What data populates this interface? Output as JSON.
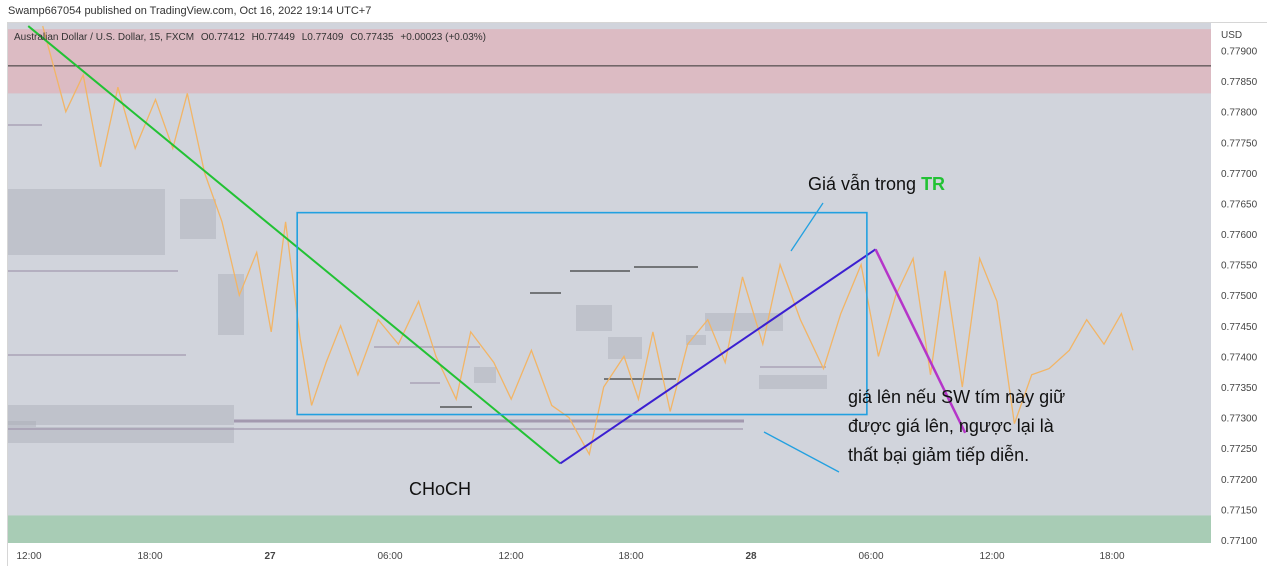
{
  "publisher_line": "Swamp667054 published on TradingView.com, Oct 16, 2022 19:14 UTC+7",
  "symbol_info": "Australian Dollar / U.S. Dollar, 15, FXCM",
  "ohlc": {
    "open": "O0.77412",
    "high": "H0.77449",
    "low": "L0.77409",
    "close": "C0.77435",
    "change": "+0.00023 (+0.03%)"
  },
  "currency": "USD",
  "colors": {
    "background": "#d1d4dc",
    "supply_zone": "#e8a2a9",
    "demand_zone": "#8cc79b",
    "price_line": "#f2b566",
    "downtrend_line": "#22c234",
    "choch_line": "#3b1fd1",
    "drop_line": "#b535c9",
    "range_box": "#22a0e0",
    "tr_label": "#22c234"
  },
  "annotations": {
    "range_title_prefix": "Giá vẫn trong ",
    "range_title_tr": "TR",
    "choch_label": "CHoCH",
    "note_line1": "giá lên nếu SW tím này giữ",
    "note_line2": "được giá lên, ngược lại là",
    "note_line3": "thất bại giảm tiếp diễn."
  },
  "chart_data": {
    "type": "line",
    "x_tick_labels": [
      "12:00",
      "18:00",
      "27",
      "06:00",
      "12:00",
      "18:00",
      "28",
      "06:00",
      "12:00",
      "18:00"
    ],
    "y_tick_labels": [
      "0.77900",
      "0.77850",
      "0.77800",
      "0.77750",
      "0.77700",
      "0.77650",
      "0.77600",
      "0.77550",
      "0.77500",
      "0.77450",
      "0.77400",
      "0.77350",
      "0.77300",
      "0.77250",
      "0.77200",
      "0.77150",
      "0.77100"
    ],
    "ylim": [
      0.77095,
      0.77945
    ],
    "xlim": [
      -1.2,
      40.4
    ],
    "x_unit": "hours after Oct 26 12:00",
    "series": [
      {
        "x": [
          0,
          0.8,
          1.4,
          2.0,
          2.6,
          3.2,
          3.9,
          4.5,
          5.0,
          5.6,
          6.2,
          6.8,
          7.4,
          7.9,
          8.4,
          8.9,
          9.3,
          9.8,
          10.3,
          10.9,
          11.6,
          12.3,
          13.0,
          13.6,
          14.3,
          14.8,
          15.6,
          16.2,
          16.9,
          17.6,
          18.2,
          18.9,
          19.4,
          20.1,
          20.6,
          21.1,
          21.7,
          22.3,
          23.0,
          23.6,
          24.2,
          24.9,
          25.5,
          26.2,
          27.0,
          27.6,
          28.3,
          28.9,
          29.5,
          30.1,
          30.7,
          31.2,
          31.8,
          32.4,
          33.0,
          33.6,
          34.2,
          34.8,
          35.5,
          36.1,
          36.7,
          37.3,
          37.7
        ],
        "y": [
          0.7794,
          0.778,
          0.7786,
          0.7771,
          0.7784,
          0.7774,
          0.7782,
          0.7774,
          0.7783,
          0.777,
          0.7762,
          0.775,
          0.7757,
          0.7744,
          0.7762,
          0.7743,
          0.7732,
          0.7739,
          0.7745,
          0.7737,
          0.7746,
          0.7742,
          0.7749,
          0.774,
          0.7733,
          0.7744,
          0.7739,
          0.7733,
          0.7741,
          0.7732,
          0.773,
          0.7724,
          0.7735,
          0.774,
          0.7733,
          0.7744,
          0.7731,
          0.7742,
          0.7746,
          0.7739,
          0.7753,
          0.7742,
          0.7755,
          0.7746,
          0.7738,
          0.7747,
          0.7755,
          0.774,
          0.775,
          0.7756,
          0.7737,
          0.7754,
          0.7735,
          0.7756,
          0.7749,
          0.7729,
          0.7737,
          0.7738,
          0.7741,
          0.7746,
          0.7742,
          0.7747,
          0.7741
        ]
      }
    ],
    "choch_low": {
      "x": 17.9,
      "y": 0.77225
    },
    "swing_high": {
      "x": 28.8,
      "y": 0.77575
    },
    "final_low": {
      "x": 31.9,
      "y": 0.77275
    },
    "trend_line": {
      "x": [
        -0.5,
        17.9
      ],
      "y": [
        0.7794,
        0.77225
      ]
    },
    "range_box": {
      "x0": 8.8,
      "x1": 28.5,
      "y0": 0.77305,
      "y1": 0.77635
    },
    "supply_zone": {
      "y0": 0.7783,
      "y1": 0.77935
    },
    "demand_zone": {
      "y0": 0.77095,
      "y1": 0.7714
    },
    "horizontal_level": 0.77875
  }
}
